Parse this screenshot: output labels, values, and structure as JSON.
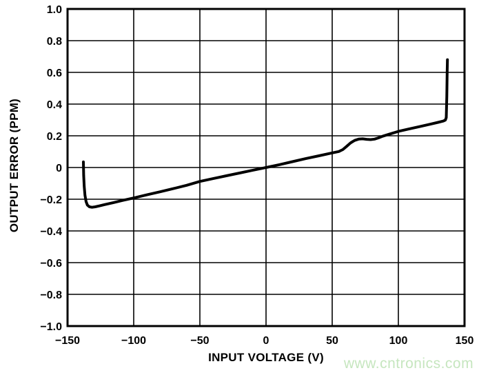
{
  "watermark": {
    "text": "www.cntronics.com",
    "color": "#c6e6bf"
  },
  "colors": {
    "axis": "#000000",
    "grid": "#000000",
    "curve": "#000000",
    "background": "#ffffff"
  },
  "chart_data": {
    "type": "line",
    "title": "",
    "xlabel": "INPUT VOLTAGE (V)",
    "ylabel": "OUTPUT ERROR (PPM)",
    "xlim": [
      -150,
      150
    ],
    "ylim": [
      -1.0,
      1.0
    ],
    "grid": true,
    "legend": "none",
    "x_ticks": [
      {
        "v": -150,
        "label": "−150"
      },
      {
        "v": -100,
        "label": "−100"
      },
      {
        "v": -50,
        "label": "−50"
      },
      {
        "v": 0,
        "label": "0"
      },
      {
        "v": 50,
        "label": "50"
      },
      {
        "v": 100,
        "label": "100"
      },
      {
        "v": 150,
        "label": "150"
      }
    ],
    "y_ticks": [
      {
        "v": 1.0,
        "label": "1.0"
      },
      {
        "v": 0.8,
        "label": "0.8"
      },
      {
        "v": 0.6,
        "label": "0.6"
      },
      {
        "v": 0.4,
        "label": "0.4"
      },
      {
        "v": 0.2,
        "label": "0.2"
      },
      {
        "v": 0.0,
        "label": "0"
      },
      {
        "v": -0.2,
        "label": "−0.2"
      },
      {
        "v": -0.4,
        "label": "−0.4"
      },
      {
        "v": -0.6,
        "label": "−0.6"
      },
      {
        "v": -0.8,
        "label": "−0.8"
      },
      {
        "v": -1.0,
        "label": "−1.0"
      }
    ],
    "series": [
      {
        "name": "output-error-vs-input-voltage",
        "points": [
          [
            -138.0,
            0.035
          ],
          [
            -137.8,
            -0.05
          ],
          [
            -137.4,
            -0.12
          ],
          [
            -136.8,
            -0.175
          ],
          [
            -136.0,
            -0.215
          ],
          [
            -135.0,
            -0.237
          ],
          [
            -133.5,
            -0.248
          ],
          [
            -131.5,
            -0.251
          ],
          [
            -129.0,
            -0.248
          ],
          [
            -126.0,
            -0.242
          ],
          [
            -122.0,
            -0.234
          ],
          [
            -115.0,
            -0.221
          ],
          [
            -108.0,
            -0.207
          ],
          [
            -100.0,
            -0.192
          ],
          [
            -90.0,
            -0.172
          ],
          [
            -80.0,
            -0.153
          ],
          [
            -70.0,
            -0.133
          ],
          [
            -60.0,
            -0.112
          ],
          [
            -50.0,
            -0.088
          ],
          [
            -40.0,
            -0.07
          ],
          [
            -30.0,
            -0.052
          ],
          [
            -20.0,
            -0.035
          ],
          [
            -10.0,
            -0.017
          ],
          [
            0.0,
            0.0
          ],
          [
            10.0,
            0.018
          ],
          [
            20.0,
            0.037
          ],
          [
            30.0,
            0.056
          ],
          [
            40.0,
            0.074
          ],
          [
            50.0,
            0.092
          ],
          [
            55.0,
            0.101
          ],
          [
            58.0,
            0.113
          ],
          [
            61.0,
            0.134
          ],
          [
            64.0,
            0.156
          ],
          [
            67.0,
            0.171
          ],
          [
            70.0,
            0.179
          ],
          [
            73.0,
            0.181
          ],
          [
            76.0,
            0.178
          ],
          [
            79.0,
            0.176
          ],
          [
            82.0,
            0.179
          ],
          [
            85.0,
            0.187
          ],
          [
            88.0,
            0.197
          ],
          [
            93.0,
            0.21
          ],
          [
            100.0,
            0.228
          ],
          [
            108.0,
            0.243
          ],
          [
            116.0,
            0.258
          ],
          [
            124.0,
            0.273
          ],
          [
            130.0,
            0.285
          ],
          [
            134.0,
            0.293
          ],
          [
            135.5,
            0.299
          ],
          [
            136.2,
            0.315
          ],
          [
            136.6,
            0.45
          ],
          [
            136.9,
            0.6
          ],
          [
            137.1,
            0.68
          ]
        ]
      }
    ]
  }
}
